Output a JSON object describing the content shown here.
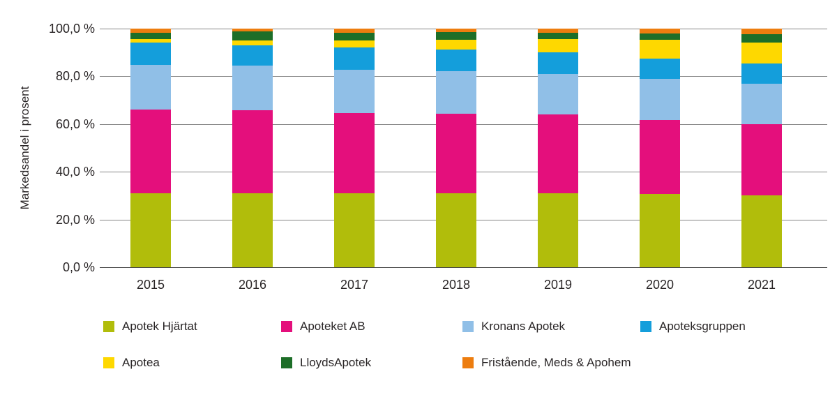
{
  "chart_data": {
    "type": "bar",
    "stacked": true,
    "title": "",
    "xlabel": "",
    "ylabel": "Markedsandel i prosent",
    "ylim": [
      0,
      100
    ],
    "grid": true,
    "legend_position": "bottom",
    "y_ticks": [
      {
        "label": "100,0 %",
        "value": 100
      },
      {
        "label": "80,0 %",
        "value": 80
      },
      {
        "label": "60,0 %",
        "value": 60
      },
      {
        "label": "40,0 %",
        "value": 40
      },
      {
        "label": "20,0 %",
        "value": 20
      },
      {
        "label": "0,0 %",
        "value": 0
      }
    ],
    "categories": [
      "2015",
      "2016",
      "2017",
      "2018",
      "2019",
      "2020",
      "2021"
    ],
    "series": [
      {
        "name": "Apotek Hjärtat",
        "color": "#b1bd0b",
        "values": [
          31.0,
          31.1,
          30.9,
          30.9,
          30.9,
          30.7,
          30.1
        ]
      },
      {
        "name": "Apoteket AB",
        "color": "#e40f7c",
        "values": [
          35.0,
          34.6,
          33.7,
          33.4,
          33.0,
          30.9,
          29.9
        ]
      },
      {
        "name": "Kronans Apotek",
        "color": "#90bfe7",
        "values": [
          18.9,
          18.7,
          18.3,
          18.0,
          17.0,
          17.3,
          16.9
        ]
      },
      {
        "name": "Apoteksgruppen",
        "color": "#149edb",
        "values": [
          9.2,
          8.5,
          9.2,
          8.9,
          9.1,
          8.4,
          8.6
        ]
      },
      {
        "name": "Apotea",
        "color": "#fed800",
        "values": [
          1.4,
          2.2,
          3.0,
          4.1,
          5.5,
          8.0,
          8.8
        ]
      },
      {
        "name": "LloydsApotek",
        "color": "#1d6e28",
        "values": [
          2.8,
          3.6,
          3.3,
          3.3,
          2.9,
          2.7,
          3.4
        ]
      },
      {
        "name": "Fristående, Meds & Apohem",
        "color": "#ed7d0f",
        "values": [
          1.7,
          1.3,
          1.6,
          1.4,
          1.6,
          2.0,
          2.3
        ]
      }
    ],
    "legend_rows": [
      [
        0,
        1,
        2,
        3
      ],
      [
        4,
        5,
        6
      ]
    ]
  }
}
